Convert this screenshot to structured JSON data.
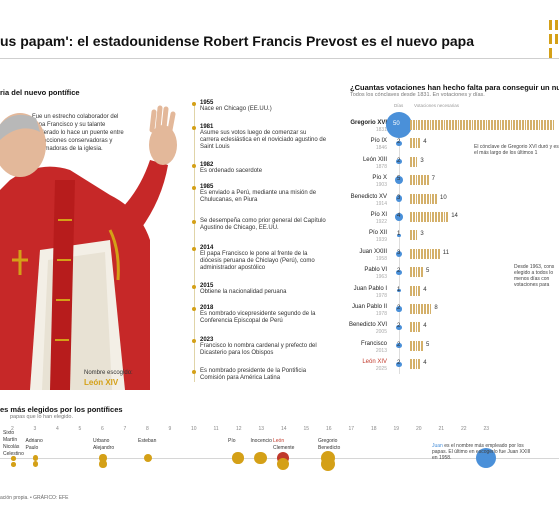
{
  "header": {
    "headline": "us papam': el estadounidense Robert Francis Prevost es el nuevo papa"
  },
  "bio": {
    "title": "ria del nuevo pontífice",
    "description": "Fue un estrecho colaborador del papa Francisco y su talante moderado lo hace un puente entre las facciones conservadoras y reformadoras de la iglesia.",
    "chosen_label": "Nombre escogido:",
    "chosen_name": "León XIV"
  },
  "timeline": [
    {
      "year": "1955",
      "text": "Nace en Chicago (EE.UU.)"
    },
    {
      "year": "1981",
      "text": "Asume sus votos luego de comenzar su carrera eclesiástica en el noviciado agustino de Saint Louis"
    },
    {
      "year": "1982",
      "text": "Es ordenado sacerdote"
    },
    {
      "year": "1985",
      "text": "Es enviado a Perú, mediante una misión de Chulucanas, en Piura"
    },
    {
      "year": "",
      "text": "Se desempeña como prior general del Capítulo Agustino de Chicago, EE.UU."
    },
    {
      "year": "2014",
      "text": "El papa Francisco le pone al frente de la diócesis peruana de Chiclayo (Perú), como administrador apostólico"
    },
    {
      "year": "2015",
      "text": "Obtiene la nacionalidad peruana"
    },
    {
      "year": "2018",
      "text": "Es nombrado vicepresidente segundo de la Conferencia Episcopal de Perú"
    },
    {
      "year": "2023",
      "text": "Francisco lo nombra cardenal y prefecto del Dicasterio para los Obispos"
    },
    {
      "year": "",
      "text": "Es nombrado presidente de la Pontificia Comisión para América Latina"
    }
  ],
  "votes": {
    "title": "¿Cuantas votaciones han hecho falta para conseguir un nu",
    "subtitle": "Todos los cónclaves desde 1831. En votaciones y días.",
    "col_days": "Días",
    "col_votes": "Votaciones necesarias",
    "annotation1": "El cónclave de Gregorio XVI duró y es el más largo de los últimos 1",
    "annotation2": "Desde 1963, cons elegido a todos lo menos días con votaciones para",
    "rows": [
      {
        "name": "Gregorio XVI",
        "year": "1831",
        "days": 50,
        "votes": 83,
        "bold": true
      },
      {
        "name": "Pío IX",
        "year": "1846",
        "days": 2,
        "votes": 4
      },
      {
        "name": "León XIII",
        "year": "1878",
        "days": 2,
        "votes": 3
      },
      {
        "name": "Pío X",
        "year": "1903",
        "days": 5,
        "votes": 7
      },
      {
        "name": "Benedicto XV",
        "year": "1914",
        "days": 3,
        "votes": 10
      },
      {
        "name": "Pío XI",
        "year": "1922",
        "days": 4,
        "votes": 14
      },
      {
        "name": "Pío XII",
        "year": "1939",
        "days": 1,
        "votes": 3
      },
      {
        "name": "Juan XXIII",
        "year": "1958",
        "days": 3,
        "votes": 11
      },
      {
        "name": "Pablo VI",
        "year": "1963",
        "days": 2,
        "votes": 5
      },
      {
        "name": "Juan Pablo I",
        "year": "1978",
        "days": 1,
        "votes": 4
      },
      {
        "name": "Juan Pablo II",
        "year": "1978",
        "days": 2,
        "votes": 8
      },
      {
        "name": "Benedicto XVI",
        "year": "2005",
        "days": 2,
        "votes": 4
      },
      {
        "name": "Francisco",
        "year": "2013",
        "days": 2,
        "votes": 5
      },
      {
        "name": "León XIV",
        "year": "2025",
        "days": 2,
        "votes": 4,
        "highlight": true
      }
    ]
  },
  "names_section": {
    "title": "es más elegidos por los pontífices",
    "subtitle": "papas que lo han elegido.",
    "ticks": [
      "2",
      "3",
      "4",
      "5",
      "6",
      "7",
      "8",
      "9",
      "10",
      "11",
      "12",
      "13",
      "14",
      "15",
      "16",
      "17",
      "18",
      "19",
      "20",
      "21",
      "22",
      "23"
    ],
    "names": [
      {
        "label": "Sixto",
        "count": 2
      },
      {
        "label": "Martín",
        "count": 2
      },
      {
        "label": "Nicolás",
        "count": 2
      },
      {
        "label": "Celestino",
        "count": 2
      },
      {
        "label": "Adriano",
        "count": 3
      },
      {
        "label": "Paulo",
        "count": 3
      },
      {
        "label": "Urbano",
        "count": 6
      },
      {
        "label": "Alejandro",
        "count": 6
      },
      {
        "label": "Esteban",
        "count": 8
      },
      {
        "label": "Pío",
        "count": 12
      },
      {
        "label": "Inocencio",
        "count": 13
      },
      {
        "label": "León",
        "count": 14
      },
      {
        "label": "Clemente",
        "count": 14
      },
      {
        "label": "Gregorio",
        "count": 16
      },
      {
        "label": "Benedicto",
        "count": 16
      },
      {
        "label": "Juan",
        "count": 23
      }
    ],
    "juan_note_name": "Juan",
    "juan_note": "es el nombre más empleado por los papas. El último en escogerlo fue Juan XXIII en 1958."
  },
  "footer": {
    "source": "ación propia. • GRÁFICO: EFE"
  },
  "colors": {
    "accent": "#d4a017",
    "blue": "#4a90d9",
    "red": "#c0392b"
  }
}
